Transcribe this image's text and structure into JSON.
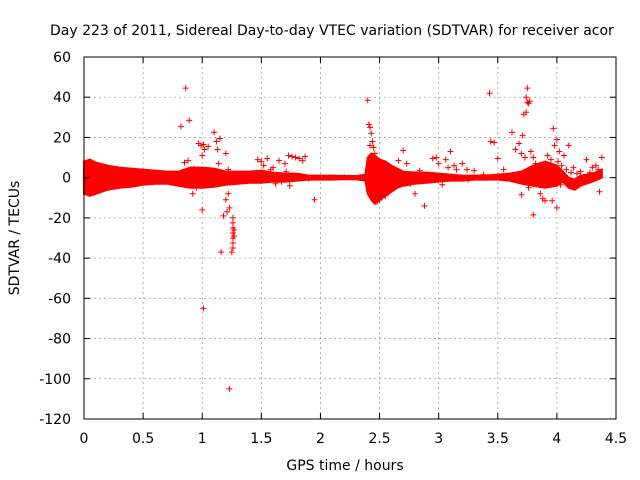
{
  "chart_data": {
    "type": "scatter",
    "title": "Day 223 of 2011, Sidereal Day-to-day VTEC variation (SDTVAR) for receiver acor",
    "xlabel": "GPS time / hours",
    "ylabel": "SDTVAR / TECUs",
    "xlim": [
      0,
      4.5
    ],
    "ylim": [
      -120,
      60
    ],
    "xticks": [
      0,
      0.5,
      1,
      1.5,
      2,
      2.5,
      3,
      3.5,
      4,
      4.5
    ],
    "xtick_labels": [
      "0",
      "0.5",
      "1",
      "1.5",
      "2",
      "2.5",
      "3",
      "3.5",
      "4",
      "4.5"
    ],
    "yticks": [
      -120,
      -100,
      -80,
      -60,
      -40,
      -20,
      0,
      20,
      40,
      60
    ],
    "ytick_labels": [
      "-120",
      "-100",
      "-80",
      "-60",
      "-40",
      "-20",
      "0",
      "20",
      "40",
      "60"
    ],
    "grid": true,
    "marker": "+",
    "color": "#ff0000",
    "series": [
      {
        "name": "SDTVAR",
        "points": [
          [
            0.86,
            44.5
          ],
          [
            0.82,
            25.5
          ],
          [
            0.89,
            28.5
          ],
          [
            0.85,
            7.5
          ],
          [
            0.88,
            8.5
          ],
          [
            0.87,
            0.5
          ],
          [
            0.9,
            3.5
          ],
          [
            0.93,
            4.5
          ],
          [
            0.91,
            -1.5
          ],
          [
            0.95,
            -5
          ],
          [
            0.92,
            -8
          ],
          [
            0.97,
            17
          ],
          [
            0.99,
            16
          ],
          [
            1.01,
            16.5
          ],
          [
            1.02,
            14
          ],
          [
            1.05,
            15.5
          ],
          [
            1.0,
            11
          ],
          [
            1.0,
            -16
          ],
          [
            1.01,
            -65
          ],
          [
            1.07,
            -3
          ],
          [
            1.1,
            22.5
          ],
          [
            1.12,
            18
          ],
          [
            1.15,
            19.5
          ],
          [
            1.13,
            14
          ],
          [
            1.14,
            7
          ],
          [
            1.16,
            -2
          ],
          [
            1.18,
            -19
          ],
          [
            1.16,
            -37
          ],
          [
            1.2,
            -11
          ],
          [
            1.21,
            -17
          ],
          [
            1.23,
            -15
          ],
          [
            1.22,
            -8
          ],
          [
            1.24,
            1
          ],
          [
            1.22,
            4
          ],
          [
            1.2,
            12
          ],
          [
            1.23,
            -105
          ],
          [
            1.26,
            -20
          ],
          [
            1.26,
            -22.5
          ],
          [
            1.26,
            -25
          ],
          [
            1.26,
            -27.5
          ],
          [
            1.26,
            -30
          ],
          [
            1.26,
            -32.5
          ],
          [
            1.26,
            -35
          ],
          [
            1.25,
            -37
          ],
          [
            1.27,
            -26
          ],
          [
            1.27,
            -29
          ],
          [
            1.47,
            9
          ],
          [
            1.5,
            8
          ],
          [
            1.52,
            6
          ],
          [
            1.55,
            9.5
          ],
          [
            1.6,
            5
          ],
          [
            1.62,
            -3
          ],
          [
            1.65,
            8.5
          ],
          [
            1.7,
            7
          ],
          [
            1.73,
            11
          ],
          [
            1.76,
            10.5
          ],
          [
            1.79,
            10
          ],
          [
            1.82,
            9.5
          ],
          [
            1.85,
            8.5
          ],
          [
            1.87,
            10.5
          ],
          [
            1.71,
            3
          ],
          [
            1.67,
            -2
          ],
          [
            1.58,
            4
          ],
          [
            1.95,
            -11
          ],
          [
            1.74,
            -4
          ],
          [
            2.4,
            38.5
          ],
          [
            2.41,
            26.5
          ],
          [
            2.42,
            25
          ],
          [
            2.43,
            22
          ],
          [
            2.44,
            18
          ],
          [
            2.45,
            15
          ],
          [
            2.46,
            12
          ],
          [
            2.42,
            16
          ],
          [
            2.47,
            9
          ],
          [
            2.5,
            -11
          ],
          [
            2.48,
            -12
          ],
          [
            2.52,
            -10
          ],
          [
            2.55,
            -9
          ],
          [
            2.58,
            -4
          ],
          [
            2.62,
            4
          ],
          [
            2.66,
            8.5
          ],
          [
            2.7,
            13.5
          ],
          [
            2.73,
            7
          ],
          [
            2.76,
            -3
          ],
          [
            2.8,
            -8
          ],
          [
            2.84,
            3.5
          ],
          [
            2.88,
            -14
          ],
          [
            2.91,
            -1
          ],
          [
            2.95,
            9.5
          ],
          [
            2.98,
            10
          ],
          [
            3.0,
            7
          ],
          [
            3.03,
            -3.5
          ],
          [
            3.06,
            9
          ],
          [
            3.08,
            5
          ],
          [
            3.1,
            13
          ],
          [
            3.13,
            6
          ],
          [
            3.15,
            4
          ],
          [
            3.2,
            7
          ],
          [
            3.24,
            4
          ],
          [
            3.3,
            3.5
          ],
          [
            3.38,
            1.5
          ],
          [
            3.43,
            42
          ],
          [
            3.44,
            18
          ],
          [
            3.47,
            17.5
          ],
          [
            3.5,
            9.5
          ],
          [
            3.55,
            4
          ],
          [
            3.58,
            0.5
          ],
          [
            3.62,
            22.5
          ],
          [
            3.65,
            14
          ],
          [
            3.68,
            17
          ],
          [
            3.7,
            12
          ],
          [
            3.71,
            21
          ],
          [
            3.73,
            10
          ],
          [
            3.74,
            40
          ],
          [
            3.75,
            44.5
          ],
          [
            3.75,
            37.5
          ],
          [
            3.74,
            32.5
          ],
          [
            3.76,
            37
          ],
          [
            3.77,
            38
          ],
          [
            3.72,
            31.5
          ],
          [
            3.78,
            13
          ],
          [
            3.8,
            10
          ],
          [
            3.82,
            7
          ],
          [
            3.7,
            -8.5
          ],
          [
            3.76,
            -5
          ],
          [
            3.8,
            -18.5
          ],
          [
            3.86,
            -8
          ],
          [
            3.88,
            -10.5
          ],
          [
            3.9,
            -11.5
          ],
          [
            3.84,
            3
          ],
          [
            3.88,
            5
          ],
          [
            3.92,
            11
          ],
          [
            3.95,
            9
          ],
          [
            3.97,
            24.5
          ],
          [
            3.98,
            16
          ],
          [
            4.0,
            19
          ],
          [
            4.02,
            13
          ],
          [
            4.01,
            8
          ],
          [
            4.04,
            6
          ],
          [
            4.06,
            11
          ],
          [
            4.08,
            4
          ],
          [
            4.1,
            16
          ],
          [
            4.12,
            2.5
          ],
          [
            4.14,
            5
          ],
          [
            4.17,
            2
          ],
          [
            4.2,
            3
          ],
          [
            4.25,
            9
          ],
          [
            4.28,
            2.5
          ],
          [
            4.3,
            5
          ],
          [
            4.33,
            6
          ],
          [
            4.35,
            4
          ],
          [
            4.38,
            10
          ],
          [
            4.36,
            -7
          ],
          [
            3.96,
            -11.5
          ],
          [
            4.0,
            -15
          ],
          [
            4.03,
            -3.5
          ],
          [
            3.99,
            -0.5
          ],
          [
            0.35,
            1.5
          ],
          [
            0.6,
            2
          ],
          [
            0.7,
            1.2
          ],
          [
            1.4,
            0.2
          ],
          [
            1.9,
            -0.5
          ],
          [
            2.2,
            0.3
          ],
          [
            3.25,
            -1
          ],
          [
            3.35,
            0
          ]
        ]
      }
    ],
    "dense_band": [
      [
        0.0,
        -8,
        8
      ],
      [
        0.05,
        -9,
        9
      ],
      [
        0.1,
        -8,
        7.5
      ],
      [
        0.2,
        -6,
        6
      ],
      [
        0.3,
        -5,
        5
      ],
      [
        0.4,
        -4.5,
        4.5
      ],
      [
        0.5,
        -3.5,
        4
      ],
      [
        0.6,
        -3,
        3.5
      ],
      [
        0.7,
        -3,
        3
      ],
      [
        0.8,
        -4,
        3
      ],
      [
        0.9,
        -5,
        5
      ],
      [
        1.0,
        -5,
        5
      ],
      [
        1.1,
        -4.5,
        4.5
      ],
      [
        1.2,
        -3.5,
        3
      ],
      [
        1.3,
        -3,
        3
      ],
      [
        1.4,
        -2.5,
        3
      ],
      [
        1.5,
        -2.5,
        3.5
      ],
      [
        1.6,
        -2,
        2.5
      ],
      [
        1.7,
        -2,
        2
      ],
      [
        1.8,
        -1.5,
        2
      ],
      [
        1.9,
        -1,
        1
      ],
      [
        2.0,
        -1,
        1
      ],
      [
        2.1,
        -1,
        1
      ],
      [
        2.2,
        -0.8,
        0.8
      ],
      [
        2.3,
        -0.8,
        0.8
      ],
      [
        2.38,
        -1.5,
        1.5
      ],
      [
        2.4,
        -8,
        10
      ],
      [
        2.43,
        -11,
        12
      ],
      [
        2.46,
        -13,
        11
      ],
      [
        2.5,
        -11,
        9
      ],
      [
        2.55,
        -9,
        8
      ],
      [
        2.6,
        -7,
        6
      ],
      [
        2.65,
        -5,
        4.5
      ],
      [
        2.7,
        -4,
        3
      ],
      [
        2.8,
        -3,
        2.5
      ],
      [
        2.9,
        -2.5,
        2.5
      ],
      [
        3.0,
        -2,
        2
      ],
      [
        3.1,
        -1.5,
        1.5
      ],
      [
        3.2,
        -1.5,
        1
      ],
      [
        3.3,
        -1,
        1
      ],
      [
        3.4,
        -1,
        1
      ],
      [
        3.5,
        -1,
        1.5
      ],
      [
        3.6,
        -1.5,
        2
      ],
      [
        3.7,
        -3,
        3
      ],
      [
        3.8,
        -4,
        6
      ],
      [
        3.9,
        -5,
        8
      ],
      [
        4.0,
        -4,
        6
      ],
      [
        4.05,
        -2,
        3
      ],
      [
        4.1,
        -5,
        0
      ],
      [
        4.15,
        -6,
        -1
      ],
      [
        4.2,
        -4,
        1
      ],
      [
        4.3,
        -2,
        2
      ],
      [
        4.38,
        0,
        4
      ]
    ]
  }
}
